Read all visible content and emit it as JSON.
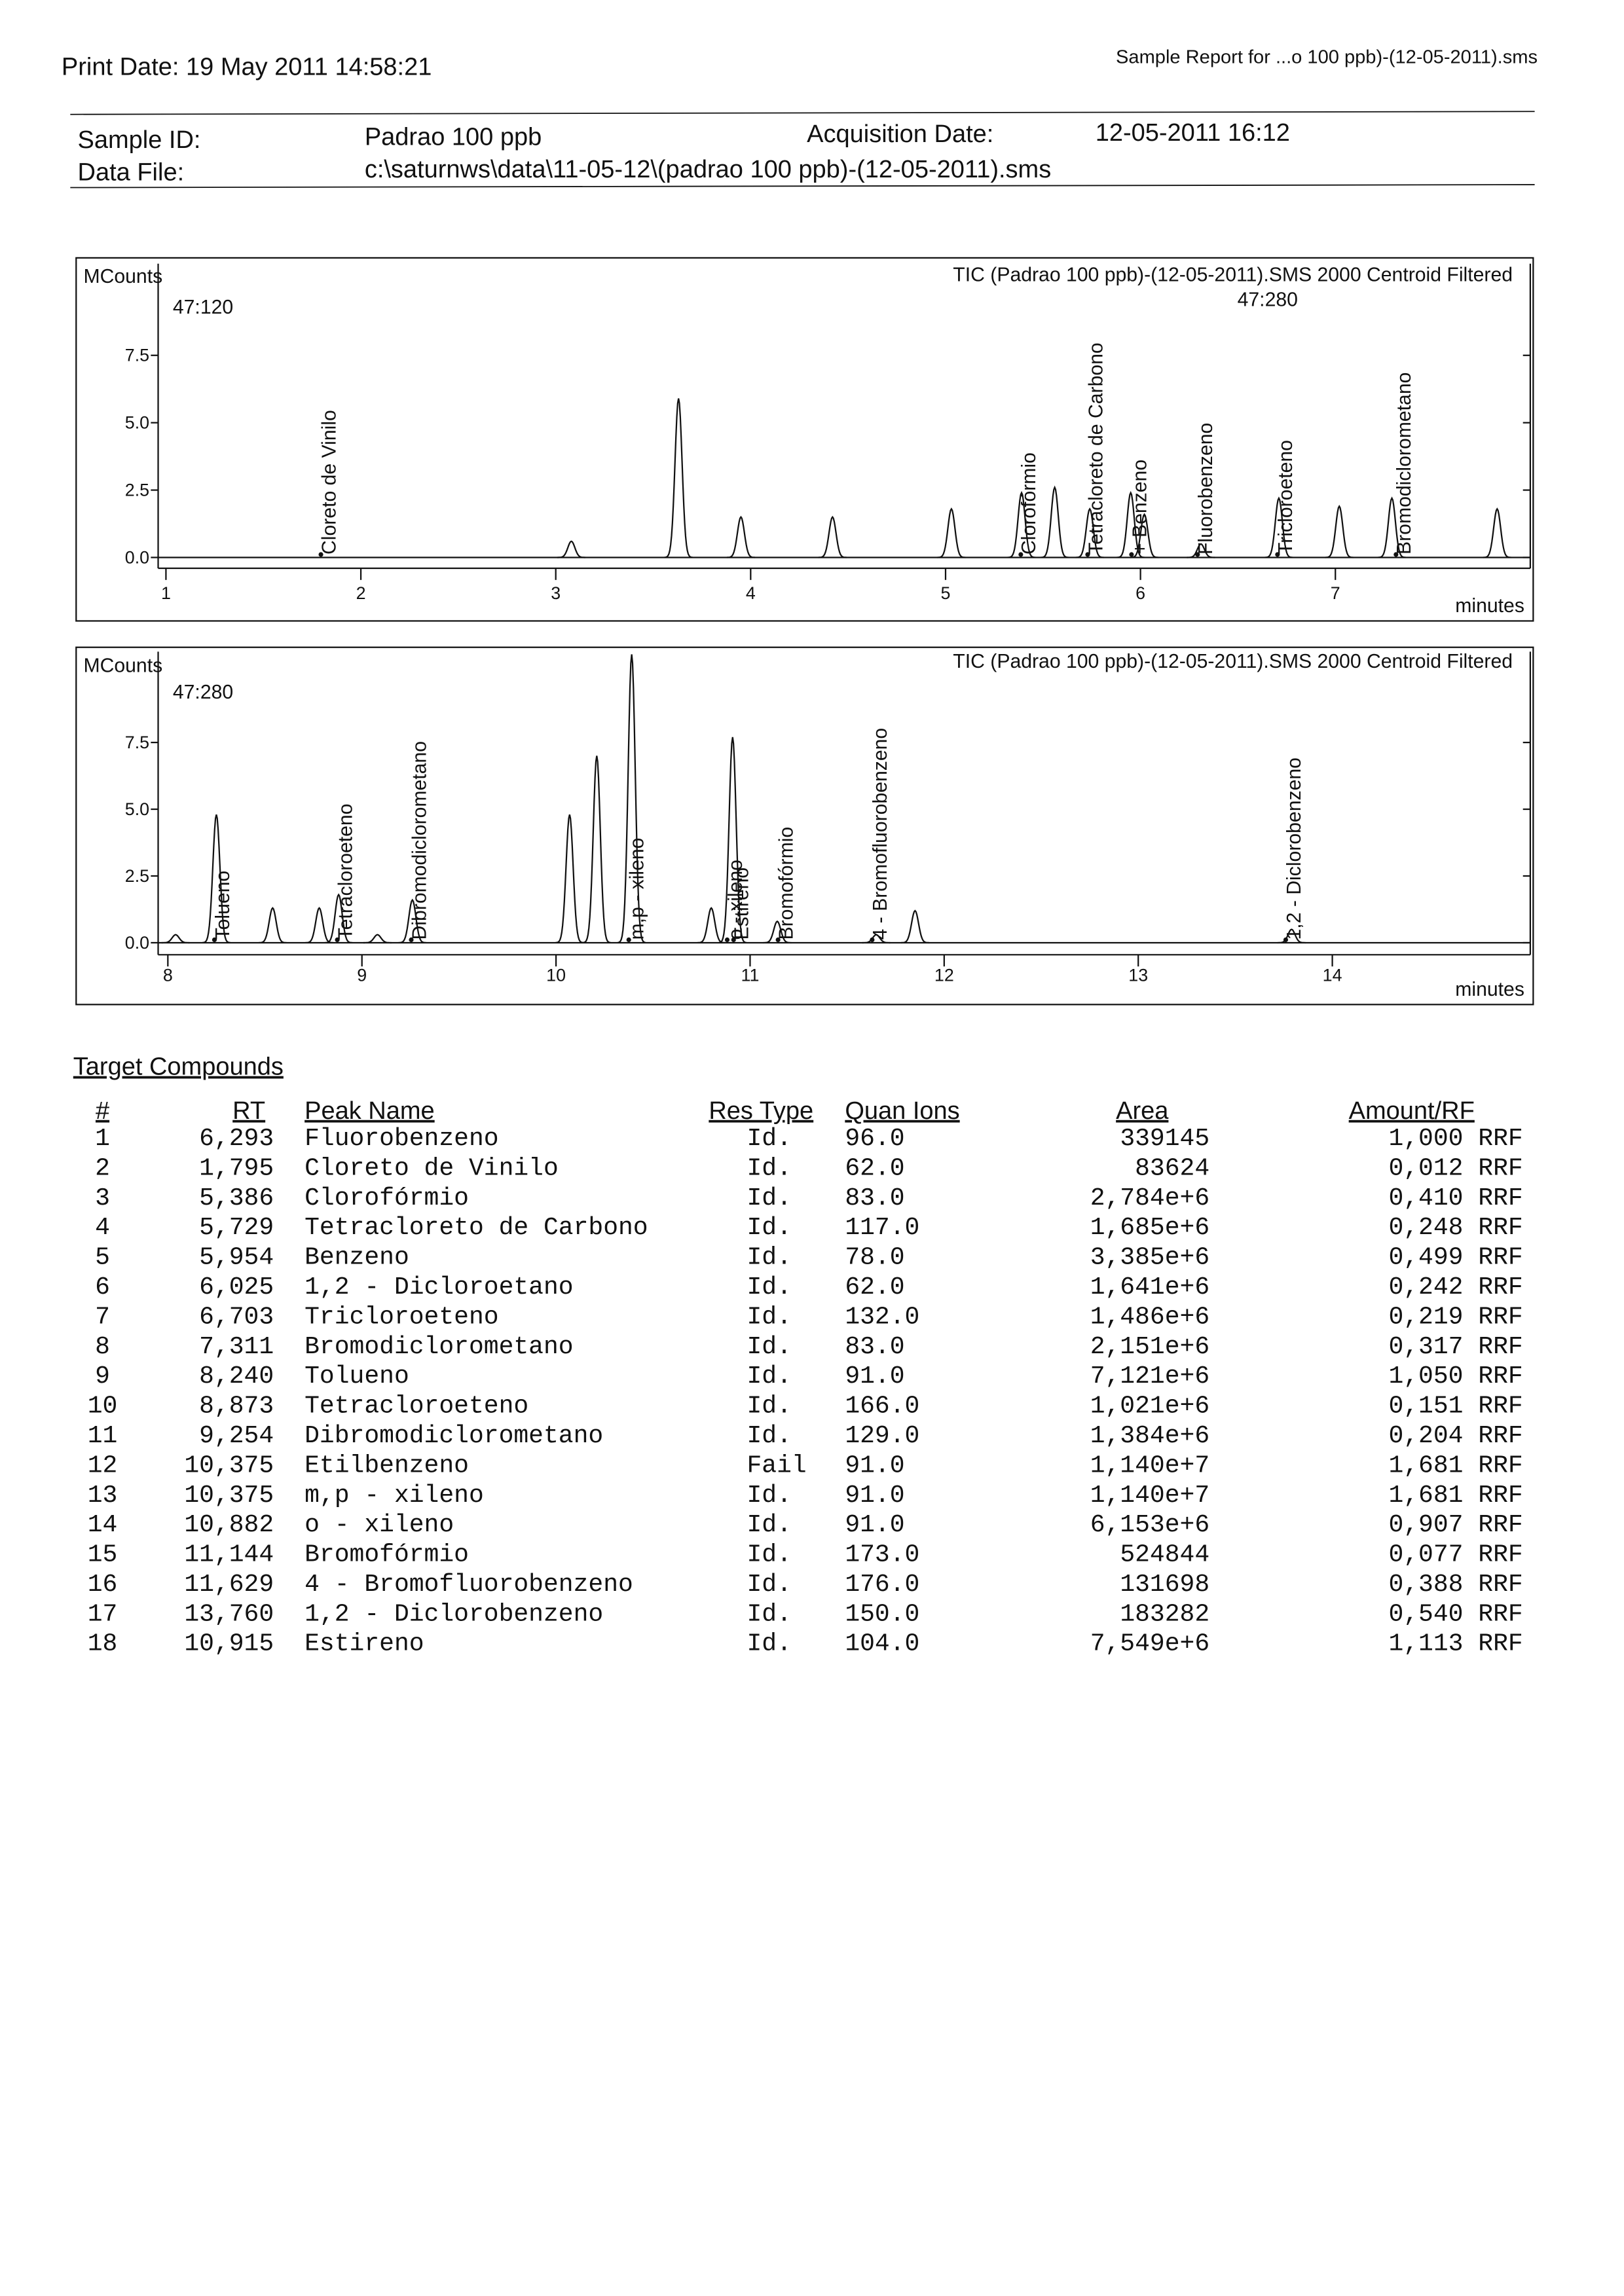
{
  "header": {
    "print_date": "Print Date:  19 May 2011 14:58:21",
    "report": "Sample Report for ...o 100 ppb)-(12-05-2011).sms",
    "sample_id_label": "Sample ID:",
    "sample_id": "Padrao 100 ppb",
    "acq_label": "Acquisition Date:",
    "acq_date": "12-05-2011 16:12",
    "data_file_label": "Data File:",
    "data_file": "c:\\saturnws\\data\\11-05-12\\(padrao 100 ppb)-(12-05-2011).sms"
  },
  "chart_data": [
    {
      "type": "peaks",
      "title": "TIC (Padrao 100 ppb)-(12-05-2011).SMS 2000 Centroid Filtered",
      "subtitle": "47:280",
      "scan_label": "47:120",
      "ylabel": "MCounts",
      "xlabel": "minutes",
      "x": [
        3.08,
        3.63,
        3.95,
        4.42,
        5.03,
        5.39,
        5.56,
        5.74,
        5.95,
        6.02,
        6.31,
        6.71,
        7.02,
        7.29,
        7.83
      ],
      "values": [
        0.6,
        5.9,
        1.5,
        1.5,
        1.8,
        2.4,
        2.6,
        1.8,
        2.4,
        1.6,
        0.5,
        2.2,
        1.9,
        2.2,
        1.8
      ],
      "xlim": [
        0.96,
        8.0
      ],
      "ylim": [
        -0.4,
        10.9
      ],
      "xticks": [
        1,
        2,
        3,
        4,
        5,
        6,
        7
      ],
      "yticks": [
        {
          "value": 0,
          "label": "0.0"
        },
        2.5,
        {
          "value": 5,
          "label": "5.0"
        },
        7.5
      ],
      "annotations": [
        {
          "text": "Cloreto de Vinilo",
          "x": 1.795
        },
        {
          "text": "Clorofórmio",
          "x": 5.386
        },
        {
          "text": "Tetracloreto de Carbono",
          "x": 5.729
        },
        {
          "text": "+ Benzeno",
          "x": 5.954
        },
        {
          "text": "Fluorobenzeno",
          "x": 6.293
        },
        {
          "text": "Tricloroeteno",
          "x": 6.703
        },
        {
          "text": "Bromodiclorometano",
          "x": 7.311
        }
      ]
    },
    {
      "type": "peaks",
      "title": "TIC (Padrao 100 ppb)-(12-05-2011).SMS 2000 Centroid Filtered",
      "scan_label": "47:280",
      "ylabel": "MCounts",
      "xlabel": "minutes",
      "x": [
        8.04,
        8.25,
        8.54,
        8.78,
        8.88,
        9.08,
        9.26,
        10.07,
        10.21,
        10.39,
        10.8,
        10.91,
        11.14,
        11.65,
        11.85,
        13.79
      ],
      "values": [
        0.3,
        4.8,
        1.3,
        1.3,
        1.8,
        0.3,
        1.6,
        4.8,
        7.0,
        10.8,
        1.3,
        7.7,
        0.8,
        0.3,
        1.2,
        0.5
      ],
      "xlim": [
        7.95,
        15.02
      ],
      "ylim": [
        -0.45,
        10.9
      ],
      "xticks": [
        8,
        9,
        10,
        11,
        12,
        13,
        14
      ],
      "yticks": [
        {
          "value": 0,
          "label": "0.0"
        },
        2.5,
        {
          "value": 5,
          "label": "5.0"
        },
        7.5
      ],
      "annotations": [
        {
          "text": "Tolueno",
          "x": 8.24
        },
        {
          "text": "Tetracloroeteno",
          "x": 8.873
        },
        {
          "text": "Dibromodiclorometano",
          "x": 9.254
        },
        {
          "text": "m,p - xileno",
          "x": 10.375
        },
        {
          "text": "o - xileno",
          "x": 10.882
        },
        {
          "text": "Estireno",
          "x": 10.915
        },
        {
          "text": "Bromofórmio",
          "x": 11.144
        },
        {
          "text": "4 - Bromofluorobenzeno",
          "x": 11.629
        },
        {
          "text": "1,2 - Diclorobenzeno",
          "x": 13.76
        }
      ]
    }
  ],
  "table": {
    "title": "Target Compounds",
    "columns": [
      "#",
      "RT",
      "Peak Name",
      "Res Type",
      "Quan Ions",
      "Area",
      "Amount/RF"
    ],
    "rows": [
      [
        "1",
        "6,293",
        "Fluorobenzeno",
        "Id.",
        "96.0",
        "339145",
        "1,000 RRF"
      ],
      [
        "2",
        "1,795",
        "Cloreto de Vinilo",
        "Id.",
        "62.0",
        "83624",
        "0,012 RRF"
      ],
      [
        "3",
        "5,386",
        "Clorofórmio",
        "Id.",
        "83.0",
        "2,784e+6",
        "0,410 RRF"
      ],
      [
        "4",
        "5,729",
        "Tetracloreto de Carbono",
        "Id.",
        "117.0",
        "1,685e+6",
        "0,248 RRF"
      ],
      [
        "5",
        "5,954",
        "Benzeno",
        "Id.",
        "78.0",
        "3,385e+6",
        "0,499 RRF"
      ],
      [
        "6",
        "6,025",
        "1,2 - Dicloroetano",
        "Id.",
        "62.0",
        "1,641e+6",
        "0,242 RRF"
      ],
      [
        "7",
        "6,703",
        "Tricloroeteno",
        "Id.",
        "132.0",
        "1,486e+6",
        "0,219 RRF"
      ],
      [
        "8",
        "7,311",
        "Bromodiclorometano",
        "Id.",
        "83.0",
        "2,151e+6",
        "0,317 RRF"
      ],
      [
        "9",
        "8,240",
        "Tolueno",
        "Id.",
        "91.0",
        "7,121e+6",
        "1,050 RRF"
      ],
      [
        "10",
        "8,873",
        "Tetracloroeteno",
        "Id.",
        "166.0",
        "1,021e+6",
        "0,151 RRF"
      ],
      [
        "11",
        "9,254",
        "Dibromodiclorometano",
        "Id.",
        "129.0",
        "1,384e+6",
        "0,204 RRF"
      ],
      [
        "12",
        "10,375",
        "Etilbenzeno",
        "Fail",
        "91.0",
        "1,140e+7",
        "1,681 RRF"
      ],
      [
        "13",
        "10,375",
        "m,p - xileno",
        "Id.",
        "91.0",
        "1,140e+7",
        "1,681 RRF"
      ],
      [
        "14",
        "10,882",
        "o - xileno",
        "Id.",
        "91.0",
        "6,153e+6",
        "0,907 RRF"
      ],
      [
        "15",
        "11,144",
        "Bromofórmio",
        "Id.",
        "173.0",
        "524844",
        "0,077 RRF"
      ],
      [
        "16",
        "11,629",
        "4 - Bromofluorobenzeno",
        "Id.",
        "176.0",
        "131698",
        "0,388 RRF"
      ],
      [
        "17",
        "13,760",
        "1,2 - Diclorobenzeno",
        "Id.",
        "150.0",
        "183282",
        "0,540 RRF"
      ],
      [
        "18",
        "10,915",
        "Estireno",
        "Id.",
        "104.0",
        "7,549e+6",
        "1,113 RRF"
      ]
    ]
  }
}
